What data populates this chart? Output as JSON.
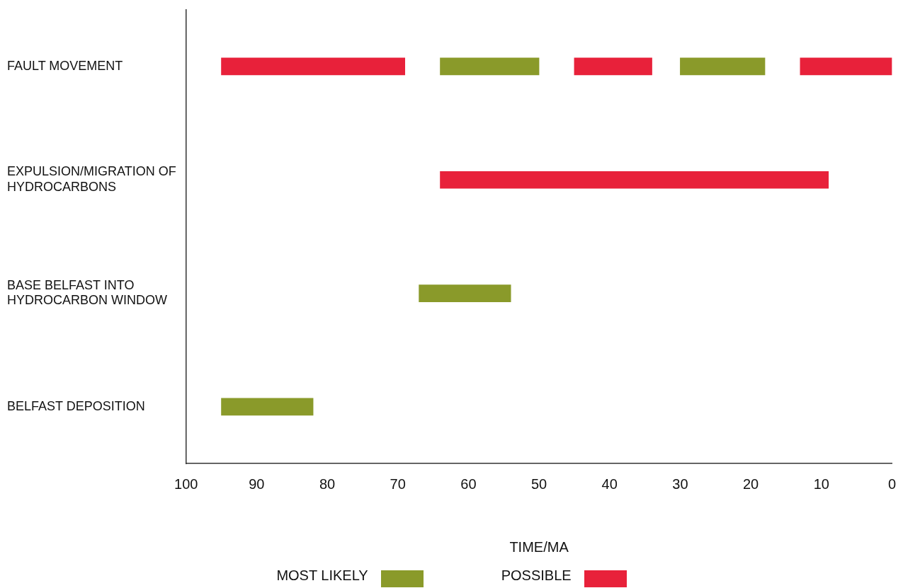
{
  "chart_data": {
    "type": "bar",
    "orientation": "horizontal",
    "xlabel": "TIME/MA",
    "categories": [
      "FAULT MOVEMENT",
      "EXPULSION/MIGRATION OF HYDROCARBONS",
      "BASE BELFAST INTO HYDROCARBON WINDOW",
      "BELFAST DEPOSITION"
    ],
    "series": [
      {
        "name": "MOST LIKELY",
        "color": "#8a9a2a",
        "values": [
          14,
          null,
          13,
          13
        ],
        "base": [
          50,
          null,
          54,
          82
        ]
      },
      {
        "color": "#8a9a2a",
        "values": [
          12,
          null,
          null,
          null
        ],
        "base": [
          18,
          null,
          null,
          null
        ]
      },
      {
        "name": "POSSIBLE",
        "color": "#e8213a",
        "values": [
          26,
          55,
          null,
          null
        ],
        "base": [
          69,
          9,
          null,
          null
        ]
      },
      {
        "color": "#e8213a",
        "values": [
          11,
          null,
          null,
          null
        ],
        "base": [
          34,
          null,
          null,
          null
        ]
      },
      {
        "color": "#e8213a",
        "values": [
          13,
          null,
          null,
          null
        ],
        "base": [
          0,
          null,
          null,
          null
        ]
      }
    ],
    "xlim": [
      100,
      0
    ],
    "xticks": [
      100,
      90,
      80,
      70,
      60,
      50,
      40,
      30,
      20,
      10,
      0
    ],
    "grid": false,
    "legend": "bottom"
  }
}
